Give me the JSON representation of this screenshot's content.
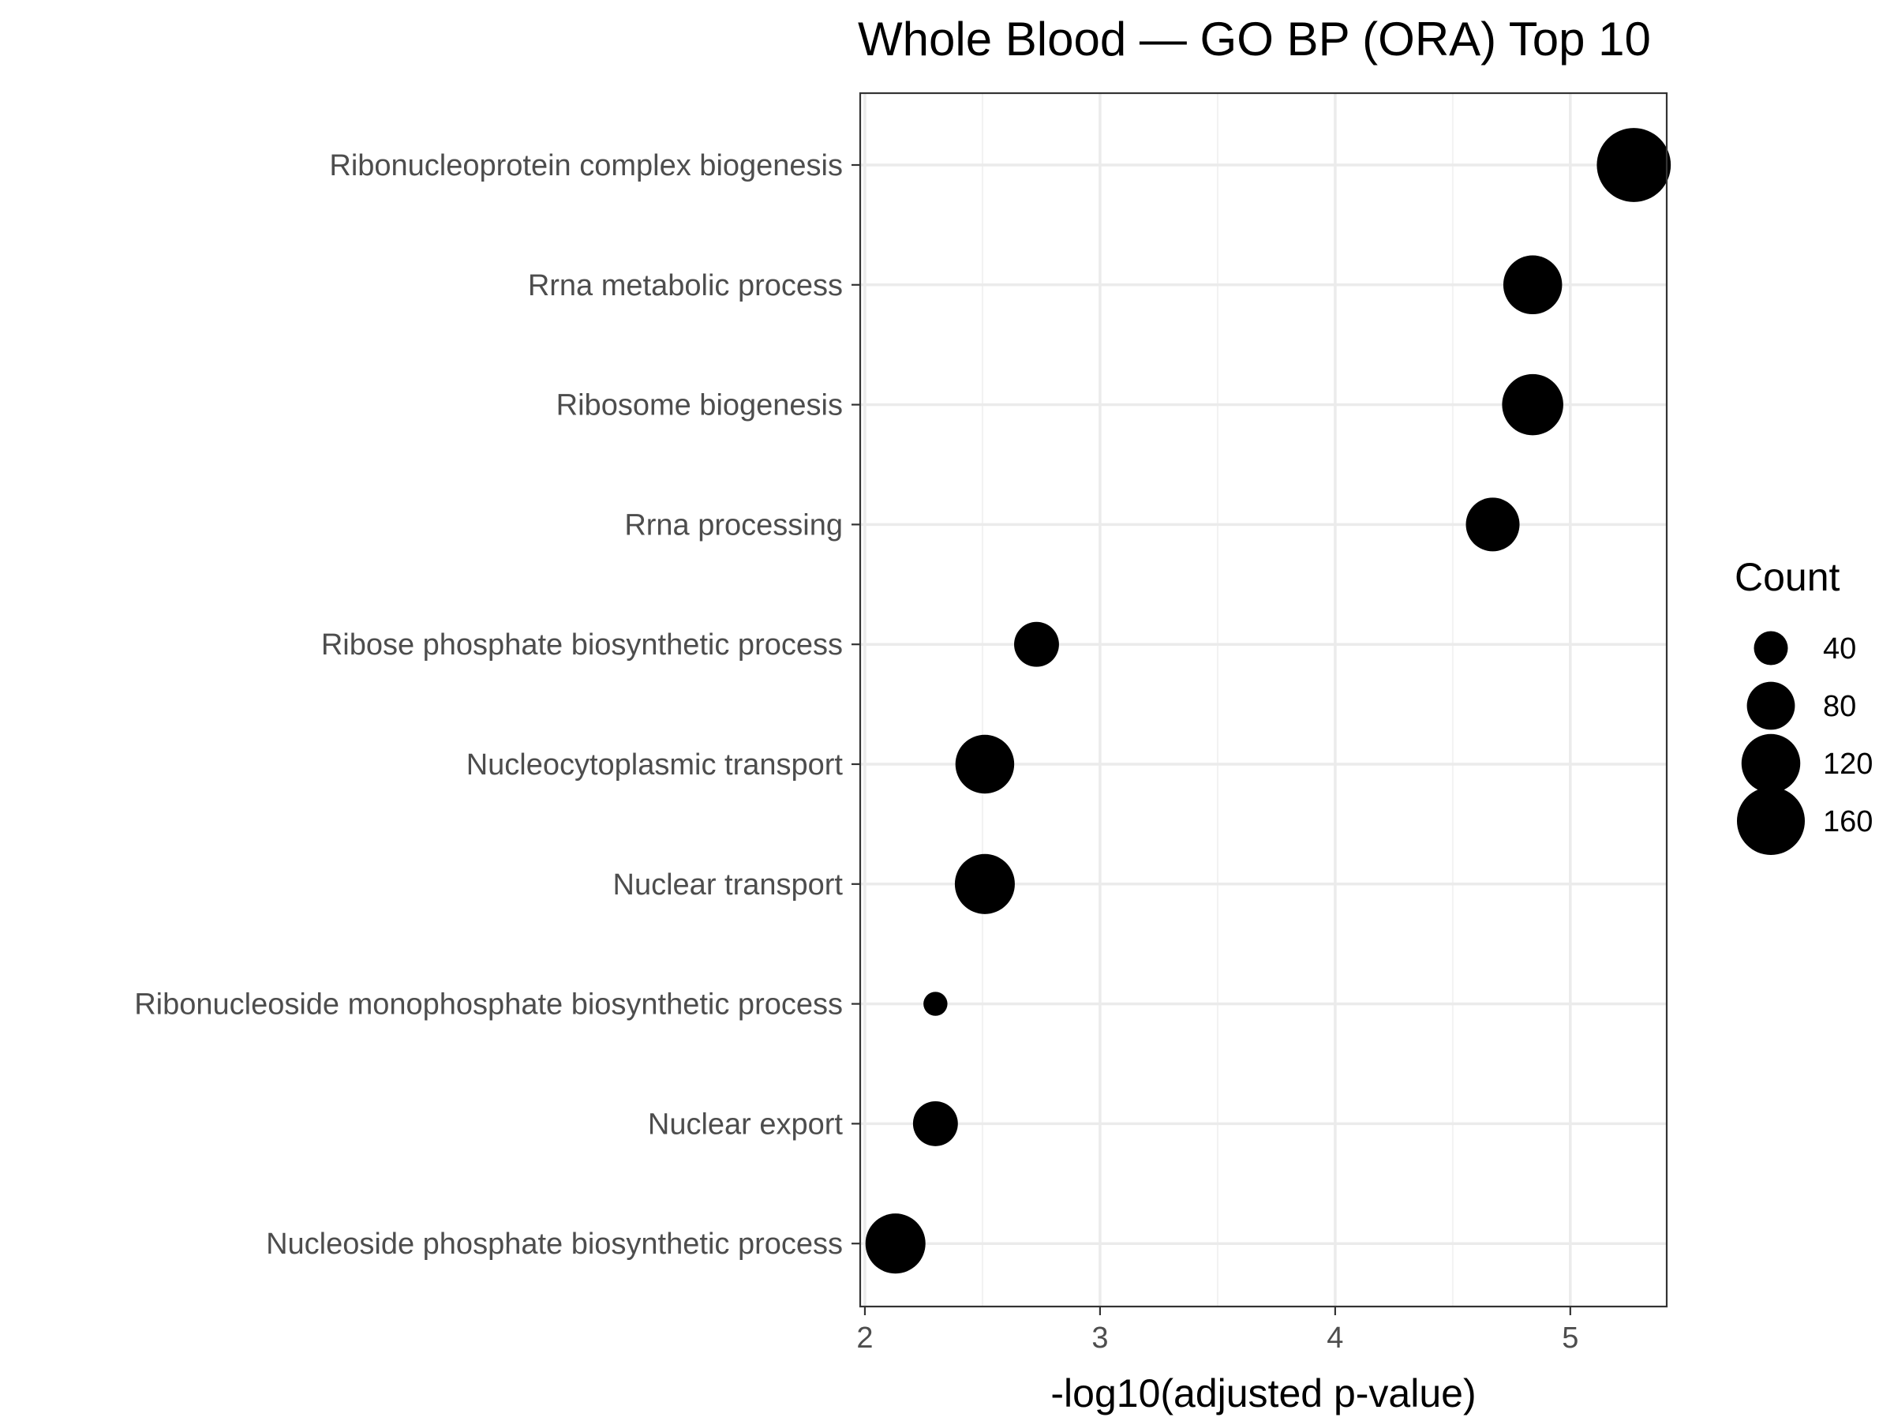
{
  "chart_data": {
    "type": "scatter",
    "title": "Whole Blood — GO BP (ORA) Top 10",
    "xlabel": "-log10(adjusted p-value)",
    "ylabel": "",
    "xlim": [
      1.98,
      5.41
    ],
    "x_ticks": [
      2,
      3,
      4,
      5
    ],
    "grid": true,
    "legend_position": "right",
    "size_legend": {
      "title": "Count",
      "values": [
        40,
        80,
        120,
        160
      ],
      "labels": [
        "40",
        "80",
        "120",
        "160"
      ]
    },
    "point_color": "#000000",
    "categories": [
      "Ribonucleoprotein complex biogenesis",
      "Rrna metabolic process",
      "Ribosome biogenesis",
      "Rrna processing",
      "Ribose phosphate biosynthetic process",
      "Nucleocytoplasmic transport",
      "Nuclear transport",
      "Ribonucleoside monophosphate biosynthetic process",
      "Nuclear export",
      "Nucleoside phosphate biosynthetic process"
    ],
    "x": [
      5.27,
      4.84,
      4.84,
      4.67,
      2.73,
      2.51,
      2.51,
      2.3,
      2.3,
      2.13
    ],
    "count": [
      190,
      120,
      130,
      100,
      70,
      120,
      125,
      20,
      70,
      125
    ]
  }
}
